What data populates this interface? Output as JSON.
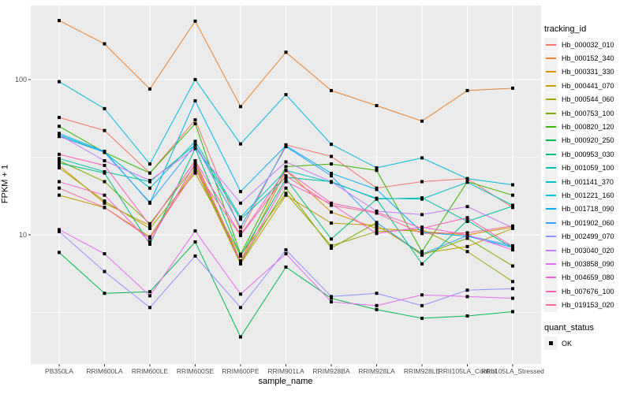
{
  "colors": {
    "panel_bg": "#EBEBEB",
    "grid": "#FFFFFF",
    "tick_mark": "#333333",
    "tick_text": "#4D4D4D",
    "axis_title": "#000000",
    "point": "#000000",
    "legend_key_bg": "#F2F2F2"
  },
  "legend": {
    "title": "tracking_id"
  },
  "legend2": {
    "title": "quant_status",
    "items": [
      {
        "label": "OK",
        "marker": "black-square"
      }
    ]
  },
  "chart_data": {
    "type": "line",
    "title": "",
    "xlabel": "sample_name",
    "ylabel": "FPKM + 1",
    "yscale": "log10",
    "ylim": [
      1.47,
      303
    ],
    "y_ticks": [
      100,
      10
    ],
    "y_minor": [
      316.2,
      31.62,
      3.162
    ],
    "grid": "on",
    "legend_position": "right",
    "point_marker": "black-square",
    "categories": [
      "PB350LA",
      "RRIM600LA",
      "RRIM600LE",
      "RRIM600SE",
      "RRIM600PE",
      "RRIM901LA",
      "RRIM928BA",
      "RRIM928LA",
      "RRIM928LE",
      "RRII105LA_Control",
      "RRII105LA_Stressed"
    ],
    "series": [
      {
        "name": "Hb_000032_010",
        "color": "#F8766D",
        "values": [
          57,
          47,
          25,
          55,
          10.5,
          38,
          32,
          20,
          22,
          23,
          15
        ]
      },
      {
        "name": "Hb_000152_340",
        "color": "#EA8331",
        "values": [
          240,
          170,
          87,
          238,
          67,
          150,
          85,
          68,
          54,
          85,
          88
        ]
      },
      {
        "name": "Hb_000331_330",
        "color": "#D89000",
        "values": [
          28,
          16,
          11.5,
          30,
          6.8,
          26,
          14,
          11,
          10.5,
          10,
          11.2
        ]
      },
      {
        "name": "Hb_000441_070",
        "color": "#C09B00",
        "values": [
          18,
          15,
          9.7,
          27,
          6.5,
          18,
          11.9,
          11.5,
          7.6,
          8.4,
          11
        ]
      },
      {
        "name": "Hb_000544_060",
        "color": "#A3A500",
        "values": [
          27,
          16.5,
          11,
          25,
          7.4,
          18.5,
          8.5,
          10.5,
          10.8,
          7.8,
          5.0
        ]
      },
      {
        "name": "Hb_000753_100",
        "color": "#7CAE00",
        "values": [
          30,
          22,
          11.8,
          28,
          6.6,
          20,
          8.2,
          12,
          7.4,
          9.5,
          6.3
        ]
      },
      {
        "name": "Hb_000820_120",
        "color": "#39B600",
        "values": [
          50,
          34,
          25,
          52,
          7.5,
          27.5,
          28.6,
          26,
          7.8,
          22,
          18
        ]
      },
      {
        "name": "Hb_000920_250",
        "color": "#00BB4E",
        "values": [
          7.7,
          4.2,
          4.3,
          9.0,
          2.2,
          6.2,
          3.9,
          3.3,
          2.9,
          3.0,
          3.2
        ]
      },
      {
        "name": "Hb_000953_030",
        "color": "#00BF7D",
        "values": [
          29,
          25,
          8.7,
          36,
          7.3,
          23,
          9.4,
          17,
          6.5,
          12.4,
          8.2
        ]
      },
      {
        "name": "Hb_001059_100",
        "color": "#00C1A3",
        "values": [
          31,
          25.5,
          22,
          38,
          12.6,
          23.5,
          22,
          17,
          17.3,
          12.2,
          15.3
        ]
      },
      {
        "name": "Hb_001141_370",
        "color": "#00BFC4",
        "values": [
          44,
          34,
          20,
          40,
          13,
          26,
          21.8,
          17.2,
          17,
          21.8,
          15.5
        ]
      },
      {
        "name": "Hb_001221_160",
        "color": "#00BAE0",
        "values": [
          97,
          65,
          28.6,
          100,
          38.5,
          80,
          38.3,
          27,
          31.3,
          23,
          21
        ]
      },
      {
        "name": "Hb_001718_090",
        "color": "#00B0F6",
        "values": [
          45,
          34.5,
          16,
          73,
          19,
          37.5,
          24.9,
          19.6,
          10.4,
          9.8,
          8.3
        ]
      },
      {
        "name": "Hb_001902_060",
        "color": "#35A2FF",
        "values": [
          43,
          34,
          16.2,
          38,
          11.2,
          37,
          24,
          12,
          7.5,
          9.9,
          8.5
        ]
      },
      {
        "name": "Hb_002499_070",
        "color": "#9590FF",
        "values": [
          10.5,
          5.8,
          3.4,
          7.3,
          3.4,
          8.0,
          4.0,
          4.2,
          3.5,
          4.4,
          4.5
        ]
      },
      {
        "name": "Hb_003040_020",
        "color": "#C77CFF",
        "values": [
          44,
          30,
          22.4,
          36,
          16,
          29.5,
          22,
          14.2,
          13.5,
          15.2,
          11.1
        ]
      },
      {
        "name": "Hb_003858_090",
        "color": "#E76BF3",
        "values": [
          10.8,
          7.55,
          4.05,
          10.6,
          4.15,
          7.55,
          3.7,
          3.5,
          4.1,
          4.0,
          3.9
        ]
      },
      {
        "name": "Hb_004659_080",
        "color": "#FA62DB",
        "values": [
          22,
          18,
          9,
          29,
          6.7,
          22,
          15.8,
          10.2,
          11.2,
          10.0,
          8.0
        ]
      },
      {
        "name": "Hb_007676_100",
        "color": "#FF62BC",
        "values": [
          33,
          28,
          11.5,
          30,
          10,
          26,
          16,
          14,
          11,
          12.9,
          8.4
        ]
      },
      {
        "name": "Hb_019153_020",
        "color": "#FF6A98",
        "values": [
          20,
          15,
          9.5,
          26,
          9.9,
          24,
          15.5,
          13.8,
          10.2,
          10.3,
          11.4
        ]
      }
    ]
  }
}
